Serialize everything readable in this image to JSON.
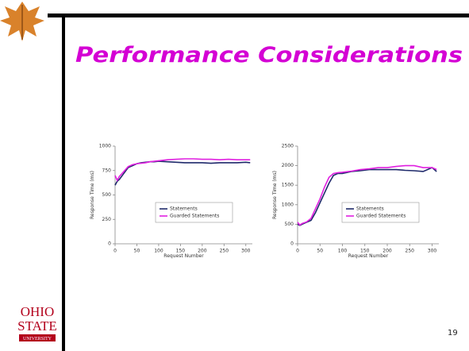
{
  "slide": {
    "title": "Performance Considerations",
    "page_number": "19",
    "logo": {
      "line1": "OHIO",
      "line2": "STATE",
      "line3": "UNIVERSITY"
    }
  },
  "chart_data": [
    {
      "type": "line",
      "xlabel": "Request Number",
      "ylabel": "Response Time (ms)",
      "x": [
        0,
        5,
        10,
        20,
        30,
        40,
        50,
        60,
        70,
        80,
        90,
        100,
        120,
        140,
        160,
        180,
        200,
        220,
        240,
        260,
        280,
        300,
        310
      ],
      "series": [
        {
          "name": "Statements",
          "color": "#1f2a6b",
          "values": [
            600,
            640,
            660,
            720,
            780,
            800,
            820,
            830,
            835,
            840,
            840,
            845,
            840,
            835,
            830,
            830,
            830,
            825,
            830,
            830,
            830,
            835,
            830
          ]
        },
        {
          "name": "Guarded Statements",
          "color": "#e020e0",
          "values": [
            700,
            650,
            690,
            740,
            790,
            810,
            820,
            825,
            830,
            840,
            845,
            850,
            860,
            865,
            870,
            870,
            865,
            865,
            860,
            865,
            860,
            860,
            860
          ]
        }
      ],
      "xlim": [
        0,
        315
      ],
      "xticks": [
        0,
        50,
        100,
        150,
        200,
        250,
        300
      ],
      "ylim": [
        0,
        1000
      ],
      "yticks": [
        0,
        250,
        500,
        750,
        1000
      ],
      "legend": "lower-right"
    },
    {
      "type": "line",
      "xlabel": "Request Number",
      "ylabel": "Response Time (ms)",
      "x": [
        0,
        5,
        10,
        20,
        30,
        40,
        50,
        60,
        70,
        80,
        90,
        100,
        120,
        140,
        160,
        180,
        200,
        220,
        240,
        260,
        280,
        300,
        310
      ],
      "series": [
        {
          "name": "Statements",
          "color": "#1f2a6b",
          "values": [
            500,
            470,
            500,
            550,
            600,
            800,
            1050,
            1300,
            1550,
            1750,
            1800,
            1800,
            1850,
            1870,
            1900,
            1900,
            1900,
            1900,
            1880,
            1870,
            1850,
            1950,
            1850
          ]
        },
        {
          "name": "Guarded Statements",
          "color": "#e020e0",
          "values": [
            550,
            480,
            520,
            560,
            650,
            900,
            1150,
            1450,
            1700,
            1800,
            1820,
            1830,
            1860,
            1900,
            1920,
            1950,
            1950,
            1980,
            2000,
            2000,
            1950,
            1950,
            1900
          ]
        }
      ],
      "xlim": [
        0,
        315
      ],
      "xticks": [
        0,
        50,
        100,
        150,
        200,
        250,
        300
      ],
      "ylim": [
        0,
        2500
      ],
      "yticks": [
        0,
        500,
        1000,
        1500,
        2000,
        2500
      ],
      "legend": "lower-right"
    }
  ]
}
